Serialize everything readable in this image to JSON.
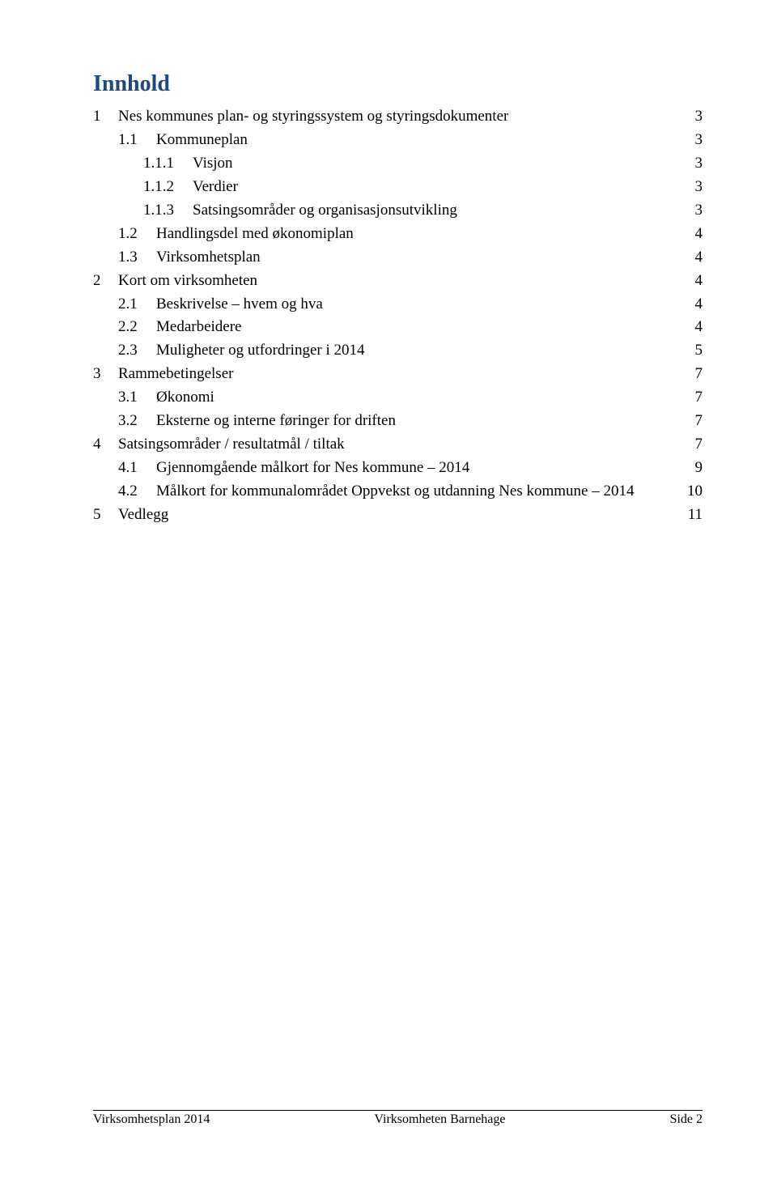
{
  "title": {
    "text": "Innhold",
    "color": "#1f497d"
  },
  "toc": [
    {
      "level": 0,
      "num": "1",
      "numWidth": 31,
      "text": "Nes kommunes plan- og styringssystem og styringsdokumenter",
      "page": "3"
    },
    {
      "level": 1,
      "num": "1.1",
      "numWidth": 47,
      "text": "Kommuneplan",
      "page": "3"
    },
    {
      "level": 2,
      "num": "1.1.1",
      "numWidth": 61,
      "text": "Visjon",
      "page": "3"
    },
    {
      "level": 2,
      "num": "1.1.2",
      "numWidth": 61,
      "text": "Verdier",
      "page": "3"
    },
    {
      "level": 2,
      "num": "1.1.3",
      "numWidth": 61,
      "text": "Satsingsområder og organisasjonsutvikling",
      "page": "3"
    },
    {
      "level": 1,
      "num": "1.2",
      "numWidth": 47,
      "text": "Handlingsdel med økonomiplan",
      "page": "4"
    },
    {
      "level": 1,
      "num": "1.3",
      "numWidth": 47,
      "text": "Virksomhetsplan",
      "page": "4"
    },
    {
      "level": 0,
      "num": "2",
      "numWidth": 31,
      "text": "Kort om virksomheten",
      "page": "4"
    },
    {
      "level": 1,
      "num": "2.1",
      "numWidth": 47,
      "text": "Beskrivelse – hvem og hva",
      "page": "4"
    },
    {
      "level": 1,
      "num": "2.2",
      "numWidth": 47,
      "text": "Medarbeidere",
      "page": "4"
    },
    {
      "level": 1,
      "num": "2.3",
      "numWidth": 47,
      "text": "Muligheter og utfordringer i 2014",
      "page": "5"
    },
    {
      "level": 0,
      "num": "3",
      "numWidth": 31,
      "text": "Rammebetingelser",
      "page": "7"
    },
    {
      "level": 1,
      "num": "3.1",
      "numWidth": 47,
      "text": "Økonomi",
      "page": "7"
    },
    {
      "level": 1,
      "num": "3.2",
      "numWidth": 47,
      "text": "Eksterne og interne føringer for driften",
      "page": "7"
    },
    {
      "level": 0,
      "num": "4",
      "numWidth": 31,
      "text": "Satsingsområder / resultatmål / tiltak",
      "page": "7"
    },
    {
      "level": 1,
      "num": "4.1",
      "numWidth": 47,
      "text": "Gjennomgående målkort for Nes kommune – 2014",
      "page": "9"
    },
    {
      "level": 1,
      "num": "4.2",
      "numWidth": 47,
      "text": "Målkort for kommunalområdet Oppvekst og utdanning Nes kommune – 2014",
      "page": "10"
    },
    {
      "level": 0,
      "num": "5",
      "numWidth": 31,
      "text": "Vedlegg",
      "page": "11"
    }
  ],
  "footer": {
    "left": "Virksomhetsplan 2014",
    "center": "Virksomheten Barnehage",
    "right": "Side 2"
  }
}
